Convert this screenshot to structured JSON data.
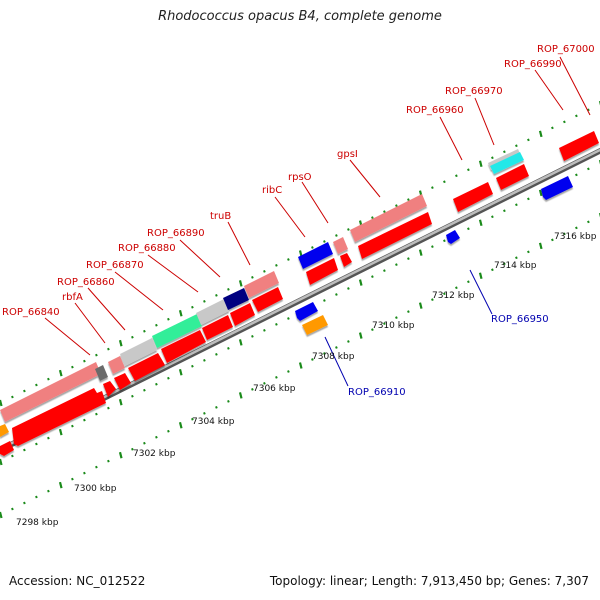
{
  "title": "Rhodococcus opacus B4, complete genome",
  "footer": {
    "accession": "Accession: NC_012522",
    "summary": "Topology: linear; Length: 7,913,450 bp; Genes: 7,307"
  },
  "scale_ticks": [
    "7298 kbp",
    "7300 kbp",
    "7302 kbp",
    "7304 kbp",
    "7306 kbp",
    "7308 kbp",
    "7310 kbp",
    "7312 kbp",
    "7314 kbp",
    "7316 kbp"
  ],
  "gene_labels": {
    "red": [
      "ROP_67000",
      "ROP_66990",
      "ROP_66970",
      "ROP_66960",
      "gpsI",
      "rpsO",
      "ribC",
      "truB",
      "ROP_66890",
      "ROP_66880",
      "ROP_66870",
      "ROP_66860",
      "rbfA",
      "ROP_66840"
    ],
    "blue": [
      "ROP_66950",
      "ROP_66910"
    ]
  },
  "colors": {
    "gene_red": "#ff0000",
    "gene_pink": "#f08080",
    "gene_gray": "#c8c8c8",
    "gene_green": "#33ee99",
    "gene_navy": "#000080",
    "gene_blue": "#0000ee",
    "gene_cyan": "#22e8e8",
    "gene_orange": "#ff9900",
    "backbone": "#888888",
    "tick_green": "#1a8a1a"
  }
}
